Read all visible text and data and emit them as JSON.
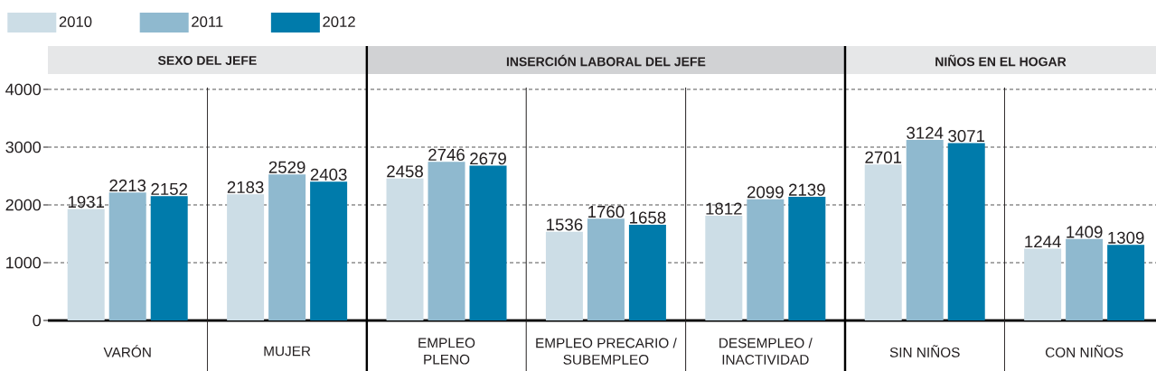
{
  "chart_data": {
    "type": "bar",
    "categories": [
      "VARÓN",
      "MUJER",
      "EMPLEO\nPLENO",
      "EMPLEO PRECARIO /\nSUBEMPLEO",
      "DESEMPLEO /\nINACTIVIDAD",
      "SIN NIÑOS",
      "CON NIÑOS"
    ],
    "series": [
      {
        "name": "2010",
        "color": "#ccdde6",
        "values": [
          1931,
          2183,
          2458,
          1536,
          1812,
          2701,
          1244
        ]
      },
      {
        "name": "2011",
        "color": "#8fb9cf",
        "values": [
          2213,
          2529,
          2746,
          1760,
          2099,
          3124,
          1409
        ]
      },
      {
        "name": "2012",
        "color": "#007bab",
        "values": [
          2152,
          2403,
          2679,
          1658,
          2139,
          3071,
          1309
        ]
      }
    ],
    "ylim": [
      0,
      4000
    ],
    "yticks": [
      0,
      1000,
      2000,
      3000,
      4000
    ],
    "grid": "y",
    "legend": "top left",
    "data_labels": true,
    "annotations": [
      "SEXO DEL JEFE",
      "INSERCIÓN LABORAL DEL JEFE",
      "NIÑOS EN EL HOGAR"
    ]
  }
}
